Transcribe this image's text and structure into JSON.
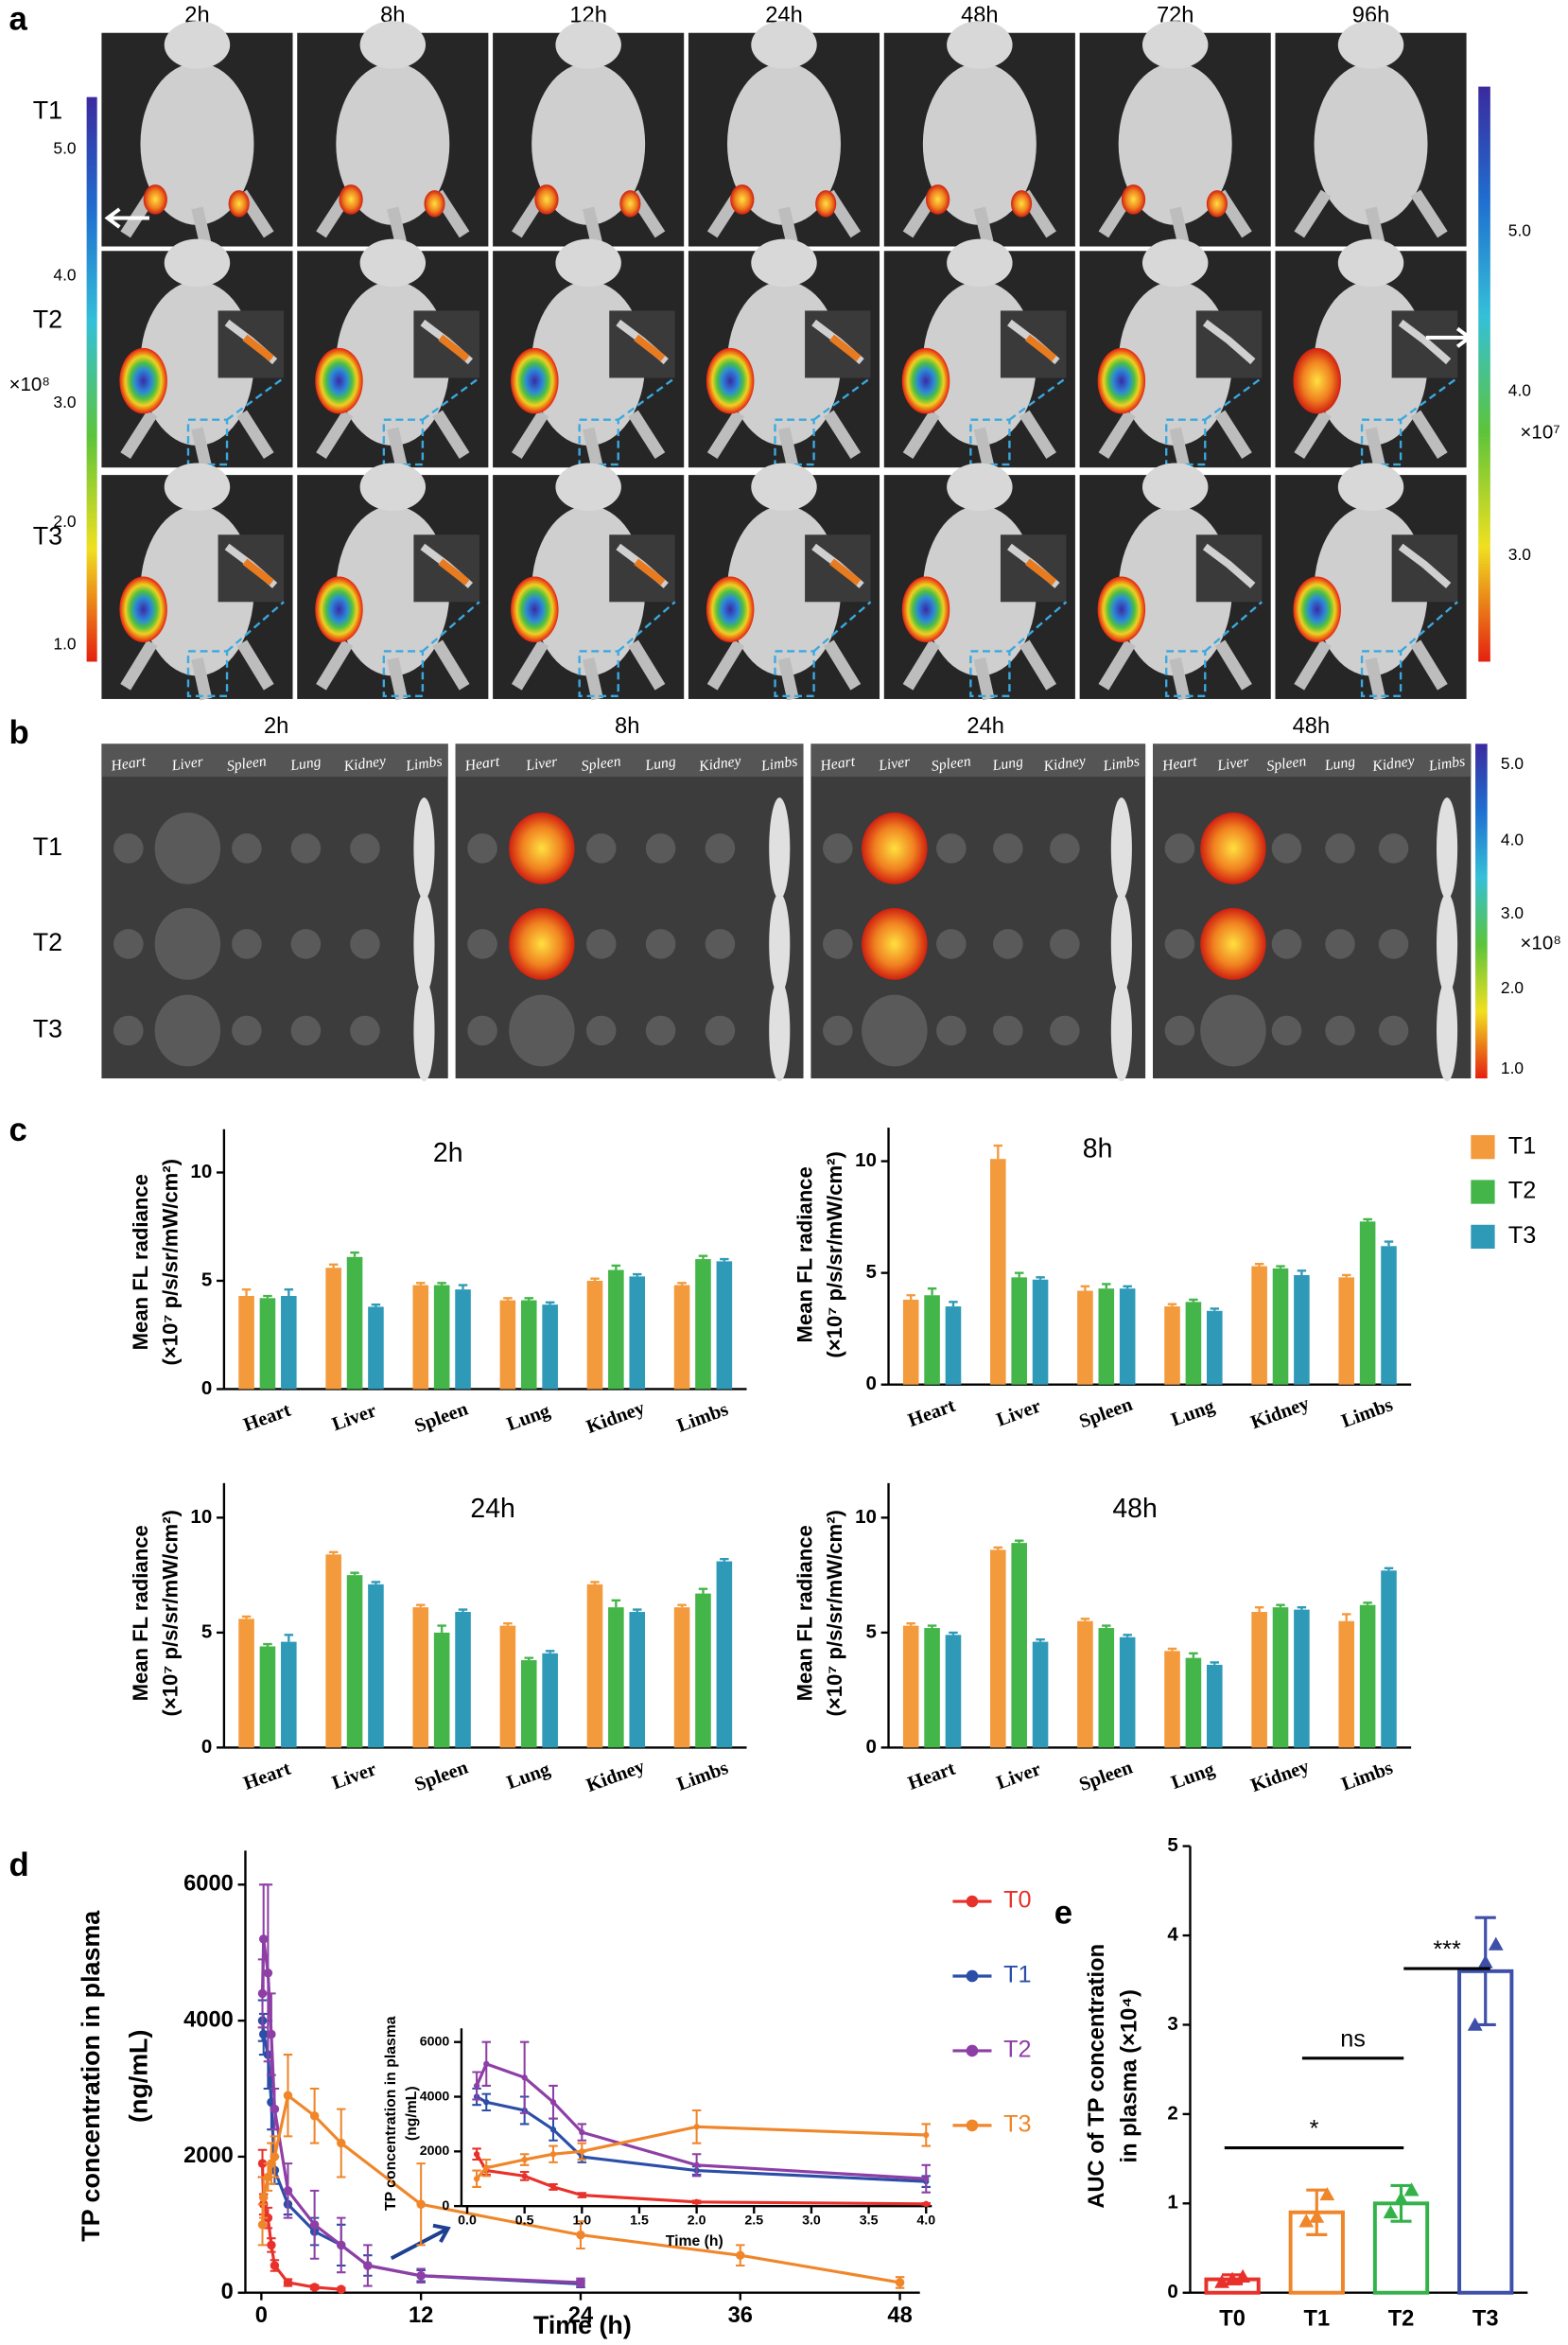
{
  "panel_labels": [
    "a",
    "b",
    "c",
    "d",
    "e"
  ],
  "figure_a": {
    "times": [
      "2h",
      "8h",
      "12h",
      "24h",
      "48h",
      "72h",
      "96h"
    ],
    "rows": [
      "T1",
      "T2",
      "T3"
    ],
    "colorbar_left": {
      "ticks": [
        "5.0",
        "4.0",
        "3.0",
        "2.0",
        "1.0"
      ],
      "unit": "×10⁸"
    },
    "colorbar_right": {
      "ticks": [
        "5.0",
        "4.0",
        "3.0"
      ],
      "unit": "×10⁷"
    }
  },
  "figure_b": {
    "times": [
      "2h",
      "8h",
      "24h",
      "48h"
    ],
    "organs": [
      "Heart",
      "Liver",
      "Spleen",
      "Lung",
      "Kidney",
      "Limbs"
    ],
    "rows": [
      "T1",
      "T2",
      "T3"
    ],
    "colorbar": {
      "ticks": [
        "5.0",
        "4.0",
        "3.0",
        "2.0",
        "1.0"
      ],
      "unit": "×10⁸"
    }
  },
  "chart_data": [
    {
      "type": "bar",
      "title": "2h",
      "ylabel": [
        "Mean FL radiance",
        "(×10⁷ p/s/sr/mW/cm²)"
      ],
      "categories": [
        "Heart",
        "Liver",
        "Spleen",
        "Lung",
        "Kidney",
        "Limbs"
      ],
      "ylim": [
        0,
        12
      ],
      "yticks": [
        0,
        5,
        10
      ],
      "legend": "right",
      "series": [
        {
          "name": "T1",
          "color": "#f39a3c",
          "values": [
            4.3,
            5.6,
            4.8,
            4.1,
            5.0,
            4.8
          ],
          "errors": [
            0.3,
            0.15,
            0.1,
            0.1,
            0.1,
            0.1
          ]
        },
        {
          "name": "T2",
          "color": "#44b549",
          "values": [
            4.2,
            6.1,
            4.8,
            4.1,
            5.5,
            6.0
          ],
          "errors": [
            0.1,
            0.2,
            0.1,
            0.1,
            0.2,
            0.15
          ]
        },
        {
          "name": "T3",
          "color": "#2f9ab8",
          "values": [
            4.3,
            3.8,
            4.6,
            3.9,
            5.2,
            5.9
          ],
          "errors": [
            0.3,
            0.1,
            0.2,
            0.1,
            0.1,
            0.1
          ]
        }
      ]
    },
    {
      "type": "bar",
      "title": "8h",
      "ylabel": [
        "Mean FL radiance",
        "(×10⁷ p/s/sr/mW/cm²)"
      ],
      "categories": [
        "Heart",
        "Liver",
        "Spleen",
        "Lung",
        "Kidney",
        "Limbs"
      ],
      "ylim": [
        0,
        11.5
      ],
      "yticks": [
        0,
        5,
        10
      ],
      "series": [
        {
          "color": "#f39a3c",
          "values": [
            3.8,
            10.1,
            4.2,
            3.5,
            5.3,
            4.8
          ],
          "errors": [
            0.2,
            0.6,
            0.2,
            0.1,
            0.1,
            0.1
          ]
        },
        {
          "color": "#44b549",
          "values": [
            4.0,
            4.8,
            4.3,
            3.7,
            5.2,
            7.3
          ],
          "errors": [
            0.3,
            0.2,
            0.2,
            0.1,
            0.1,
            0.1
          ]
        },
        {
          "color": "#2f9ab8",
          "values": [
            3.5,
            4.7,
            4.3,
            3.3,
            4.9,
            6.2
          ],
          "errors": [
            0.2,
            0.1,
            0.1,
            0.1,
            0.2,
            0.2
          ]
        }
      ]
    },
    {
      "type": "bar",
      "title": "24h",
      "ylabel": [
        "Mean FL radiance",
        "(×10⁷ p/s/sr/mW/cm²)"
      ],
      "categories": [
        "Heart",
        "Liver",
        "Spleen",
        "Lung",
        "Kidney",
        "Limbs"
      ],
      "ylim": [
        0,
        11.5
      ],
      "yticks": [
        0,
        5,
        10
      ],
      "series": [
        {
          "color": "#f39a3c",
          "values": [
            5.6,
            8.4,
            6.1,
            5.3,
            7.1,
            6.1
          ],
          "errors": [
            0.1,
            0.1,
            0.1,
            0.1,
            0.1,
            0.1
          ]
        },
        {
          "color": "#44b549",
          "values": [
            4.4,
            7.5,
            5.0,
            3.8,
            6.1,
            6.7
          ],
          "errors": [
            0.1,
            0.1,
            0.3,
            0.1,
            0.3,
            0.2
          ]
        },
        {
          "color": "#2f9ab8",
          "values": [
            4.6,
            7.1,
            5.9,
            4.1,
            5.9,
            8.1
          ],
          "errors": [
            0.3,
            0.1,
            0.1,
            0.1,
            0.1,
            0.1
          ]
        }
      ]
    },
    {
      "type": "bar",
      "title": "48h",
      "ylabel": [
        "Mean FL radiance",
        "(×10⁷ p/s/sr/mW/cm²)"
      ],
      "categories": [
        "Heart",
        "Liver",
        "Spleen",
        "Lung",
        "Kidney",
        "Limbs"
      ],
      "ylim": [
        0,
        11.5
      ],
      "yticks": [
        0,
        5,
        10
      ],
      "series": [
        {
          "color": "#f39a3c",
          "values": [
            5.3,
            8.6,
            5.5,
            4.2,
            5.9,
            5.5
          ],
          "errors": [
            0.1,
            0.1,
            0.1,
            0.1,
            0.2,
            0.3
          ]
        },
        {
          "color": "#44b549",
          "values": [
            5.2,
            8.9,
            5.2,
            3.9,
            6.1,
            6.2
          ],
          "errors": [
            0.1,
            0.1,
            0.1,
            0.2,
            0.1,
            0.1
          ]
        },
        {
          "color": "#2f9ab8",
          "values": [
            4.9,
            4.6,
            4.8,
            3.6,
            6.0,
            7.7
          ],
          "errors": [
            0.1,
            0.1,
            0.1,
            0.1,
            0.1,
            0.1
          ]
        }
      ]
    },
    {
      "type": "line",
      "xlabel": "Time (h)",
      "ylabel": [
        "TP concentration in plasma",
        "(ng/mL)"
      ],
      "xlim": [
        -1.2,
        49.5
      ],
      "ylim": [
        0,
        6500
      ],
      "xticks": [
        0,
        12,
        24,
        36,
        48
      ],
      "yticks": [
        0,
        2000,
        4000,
        6000
      ],
      "legend": "right",
      "series": [
        {
          "name": "T0",
          "color": "#e8312b",
          "x": [
            0.083,
            0.167,
            0.5,
            0.75,
            1,
            2,
            4,
            6
          ],
          "values": [
            1900,
            1300,
            1100,
            700,
            400,
            150,
            80,
            50
          ],
          "errors": [
            200,
            150,
            150,
            100,
            80,
            50,
            30,
            20
          ]
        },
        {
          "name": "T1",
          "color": "#2b4ea8",
          "x": [
            0.083,
            0.167,
            0.5,
            0.75,
            1,
            2,
            4,
            6,
            8,
            12,
            24
          ],
          "values": [
            4000,
            3800,
            3500,
            2800,
            1800,
            1300,
            900,
            700,
            400,
            250,
            130
          ],
          "errors": [
            300,
            300,
            500,
            400,
            200,
            150,
            200,
            300,
            150,
            80,
            50
          ]
        },
        {
          "name": "T2",
          "color": "#8e3fa6",
          "x": [
            0.083,
            0.167,
            0.5,
            0.75,
            1,
            2,
            4,
            6,
            8,
            12,
            24
          ],
          "values": [
            4400,
            5200,
            4700,
            3800,
            2700,
            1500,
            1000,
            700,
            400,
            250,
            150
          ],
          "errors": [
            500,
            800,
            1300,
            600,
            300,
            400,
            500,
            400,
            300,
            100,
            60
          ]
        },
        {
          "name": "T3",
          "color": "#f0862a",
          "x": [
            0.083,
            0.167,
            0.5,
            0.75,
            1,
            2,
            4,
            6,
            12,
            24,
            36,
            48
          ],
          "values": [
            1000,
            1400,
            1700,
            1900,
            2000,
            2900,
            2600,
            2200,
            1300,
            850,
            550,
            150
          ],
          "errors": [
            300,
            300,
            200,
            300,
            300,
            600,
            400,
            500,
            600,
            200,
            150,
            80
          ]
        }
      ]
    },
    {
      "type": "line",
      "xlabel": "Time (h)",
      "ylabel": [
        "TP concentration in plasma",
        "(ng/mL)"
      ],
      "xlim": [
        -0.05,
        4.05
      ],
      "ylim": [
        0,
        6500
      ],
      "xticks": [
        {
          "value": 0,
          "label": "0.0"
        },
        0.5,
        {
          "value": 1,
          "label": "1.0"
        },
        1.5,
        {
          "value": 2,
          "label": "2.0"
        },
        2.5,
        {
          "value": 3,
          "label": "3.0"
        },
        3.5,
        {
          "value": 4,
          "label": "4.0"
        }
      ],
      "yticks": [
        0,
        2000,
        4000,
        6000
      ],
      "series": [
        {
          "color": "#e8312b",
          "x": [
            0.083,
            0.167,
            0.5,
            0.75,
            1,
            2,
            4
          ],
          "values": [
            1900,
            1300,
            1100,
            700,
            400,
            150,
            80
          ],
          "errors": [
            200,
            150,
            150,
            100,
            80,
            50,
            30
          ]
        },
        {
          "color": "#2b4ea8",
          "x": [
            0.083,
            0.167,
            0.5,
            0.75,
            1,
            2,
            4
          ],
          "values": [
            4000,
            3800,
            3500,
            2800,
            1800,
            1300,
            900
          ],
          "errors": [
            300,
            300,
            500,
            400,
            200,
            150,
            200
          ]
        },
        {
          "color": "#8e3fa6",
          "x": [
            0.083,
            0.167,
            0.5,
            0.75,
            1,
            2,
            4
          ],
          "values": [
            4400,
            5200,
            4700,
            3800,
            2700,
            1500,
            1000
          ],
          "errors": [
            500,
            800,
            1300,
            600,
            300,
            400,
            500
          ]
        },
        {
          "color": "#f0862a",
          "x": [
            0.083,
            0.167,
            0.5,
            0.75,
            1,
            2,
            4
          ],
          "values": [
            1000,
            1400,
            1700,
            1900,
            2000,
            2900,
            2600
          ],
          "errors": [
            300,
            300,
            200,
            300,
            300,
            600,
            400
          ]
        }
      ]
    },
    {
      "type": "dotbar",
      "ylabel": [
        "AUC of TP concentration",
        "in plasma (×10⁴)"
      ],
      "categories": [
        "T0",
        "T1",
        "T2",
        "T3"
      ],
      "values": [
        0.15,
        0.9,
        1.0,
        3.6
      ],
      "errors": [
        0.05,
        0.25,
        0.2,
        0.6
      ],
      "colors": [
        "#e8312b",
        "#f0862a",
        "#33b24a",
        "#3d4fa8"
      ],
      "points": [
        [
          0.12,
          0.15,
          0.18
        ],
        [
          0.8,
          0.85,
          1.1
        ],
        [
          0.9,
          1.05,
          1.15
        ],
        [
          3.0,
          3.7,
          3.9
        ]
      ],
      "ylim": [
        0,
        5
      ],
      "yticks": [
        0,
        1,
        2,
        3,
        4,
        5
      ],
      "annotations": [
        "*",
        "ns",
        "***"
      ]
    }
  ]
}
